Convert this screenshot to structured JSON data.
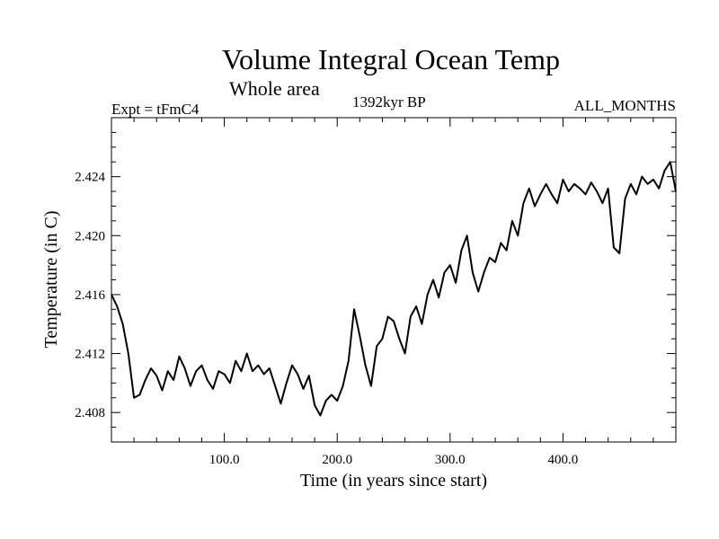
{
  "chart_data": {
    "type": "line",
    "title": "Volume Integral Ocean Temp",
    "subtitle": "Whole area",
    "header_left": "Expt = tFmC4",
    "header_center": "1392kyr BP",
    "header_right": "ALL_MONTHS",
    "xlabel": "Time (in years since start)",
    "ylabel": "Temperature (in C)",
    "xlim": [
      0,
      500
    ],
    "ylim": [
      2.406,
      2.428
    ],
    "xticks": [
      100,
      200,
      300,
      400
    ],
    "xtick_labels": [
      "100.0",
      "200.0",
      "300.0",
      "400.0"
    ],
    "yticks": [
      2.408,
      2.412,
      2.416,
      2.42,
      2.424
    ],
    "ytick_labels": [
      "2.408",
      "2.412",
      "2.416",
      "2.420",
      "2.424"
    ],
    "grid": false,
    "series": [
      {
        "name": "Volume Integral Ocean Temp",
        "x": [
          0,
          5,
          10,
          15,
          20,
          25,
          30,
          35,
          40,
          45,
          50,
          55,
          60,
          65,
          70,
          75,
          80,
          85,
          90,
          95,
          100,
          105,
          110,
          115,
          120,
          125,
          130,
          135,
          140,
          145,
          150,
          155,
          160,
          165,
          170,
          175,
          180,
          185,
          190,
          195,
          200,
          205,
          210,
          215,
          220,
          225,
          230,
          235,
          240,
          245,
          250,
          255,
          260,
          265,
          270,
          275,
          280,
          285,
          290,
          295,
          300,
          305,
          310,
          315,
          320,
          325,
          330,
          335,
          340,
          345,
          350,
          355,
          360,
          365,
          370,
          375,
          380,
          385,
          390,
          395,
          400,
          405,
          410,
          415,
          420,
          425,
          430,
          435,
          440,
          445,
          450,
          455,
          460,
          465,
          470,
          475,
          480,
          485,
          490,
          495,
          500
        ],
        "y": [
          2.416,
          2.4152,
          2.414,
          2.412,
          2.409,
          2.4092,
          2.4102,
          2.411,
          2.4105,
          2.4095,
          2.4108,
          2.4102,
          2.4118,
          2.411,
          2.4098,
          2.4108,
          2.4112,
          2.4102,
          2.4096,
          2.4108,
          2.4106,
          2.41,
          2.4115,
          2.4108,
          2.412,
          2.4108,
          2.4112,
          2.4106,
          2.411,
          2.4098,
          2.4086,
          2.41,
          2.4112,
          2.4106,
          2.4096,
          2.4105,
          2.4085,
          2.4078,
          2.4088,
          2.4092,
          2.4088,
          2.4098,
          2.4115,
          2.415,
          2.4132,
          2.4112,
          2.4098,
          2.4125,
          2.413,
          2.4145,
          2.4142,
          2.413,
          2.412,
          2.4145,
          2.4152,
          2.414,
          2.416,
          2.417,
          2.4158,
          2.4175,
          2.418,
          2.4168,
          2.419,
          2.42,
          2.4175,
          2.4162,
          2.4175,
          2.4185,
          2.4182,
          2.4195,
          2.419,
          2.421,
          2.42,
          2.4222,
          2.4232,
          2.422,
          2.4228,
          2.4235,
          2.4228,
          2.4222,
          2.4238,
          2.423,
          2.4235,
          2.4232,
          2.4228,
          2.4236,
          2.423,
          2.4222,
          2.4232,
          2.4192,
          2.4188,
          2.4225,
          2.4235,
          2.4228,
          2.424,
          2.4235,
          2.4238,
          2.4232,
          2.4244,
          2.425,
          2.423
        ]
      }
    ]
  }
}
